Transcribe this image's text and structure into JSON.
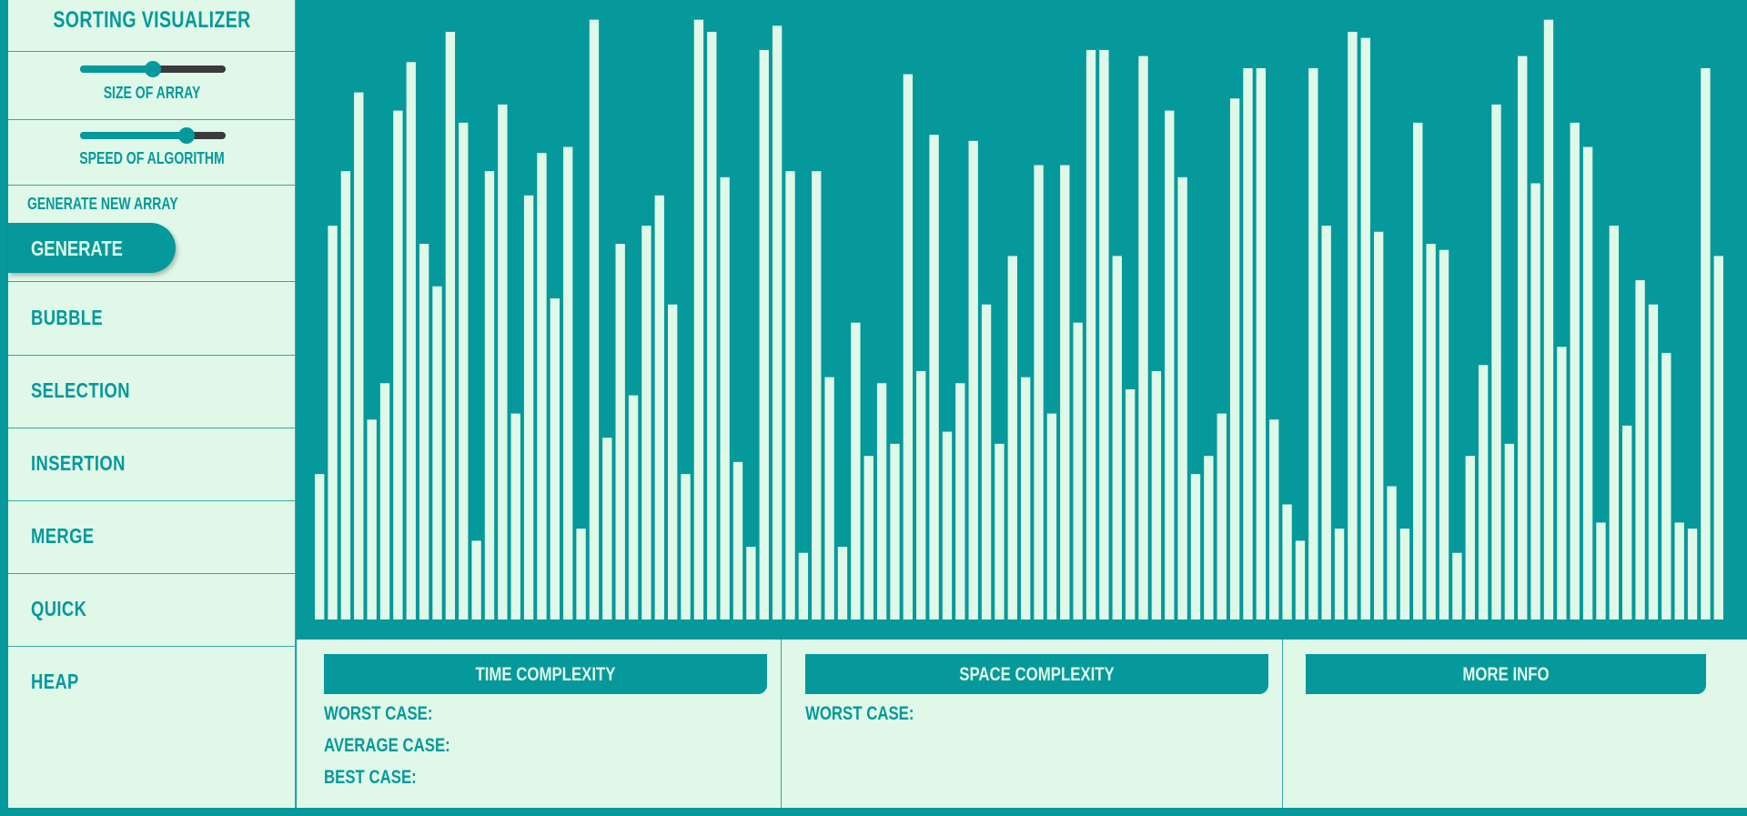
{
  "app": {
    "title": "SORTING VISUALIZER"
  },
  "colors": {
    "accent": "#05999b",
    "panel": "#dff8e8",
    "bar": "#dff8e8",
    "track": "#3b3b3b"
  },
  "controls": {
    "size_slider": {
      "label": "SIZE OF ARRAY",
      "value_fraction": 0.5
    },
    "speed_slider": {
      "label": "SPEED OF ALGORITHM",
      "value_fraction": 0.73
    },
    "generate": {
      "label": "GENERATE NEW ARRAY",
      "button_label": "GENERATE"
    }
  },
  "algorithms": [
    {
      "label": "BUBBLE"
    },
    {
      "label": "SELECTION"
    },
    {
      "label": "INSERTION"
    },
    {
      "label": "MERGE"
    },
    {
      "label": "QUICK"
    },
    {
      "label": "HEAP"
    }
  ],
  "complexity": {
    "time": {
      "title": "TIME COMPLEXITY",
      "worst": "WORST CASE:",
      "average": "AVERAGE CASE:",
      "best": "BEST CASE:"
    },
    "space": {
      "title": "SPACE COMPLEXITY",
      "worst": "WORST CASE:"
    },
    "more": {
      "title": "MORE INFO"
    }
  },
  "chart_data": {
    "type": "bar",
    "ylim": [
      0,
      100
    ],
    "values": [
      24,
      65,
      74,
      87,
      33,
      39,
      84,
      92,
      62,
      55,
      97,
      82,
      13,
      74,
      85,
      34,
      70,
      77,
      53,
      78,
      15,
      99,
      30,
      62,
      37,
      65,
      70,
      52,
      24,
      99,
      97,
      73,
      26,
      12,
      94,
      98,
      74,
      11,
      74,
      40,
      12,
      49,
      27,
      39,
      29,
      90,
      41,
      80,
      31,
      39,
      79,
      52,
      29,
      60,
      40,
      75,
      34,
      75,
      49,
      94,
      94,
      60,
      38,
      93,
      41,
      84,
      73,
      24,
      27,
      34,
      86,
      91,
      91,
      33,
      19,
      13,
      91,
      65,
      15,
      97,
      96,
      64,
      22,
      15,
      82,
      62,
      61,
      11,
      27,
      42,
      85,
      29,
      93,
      72,
      99,
      45,
      82,
      78,
      16,
      65,
      32,
      56,
      52,
      44,
      16,
      15,
      91,
      60
    ]
  }
}
